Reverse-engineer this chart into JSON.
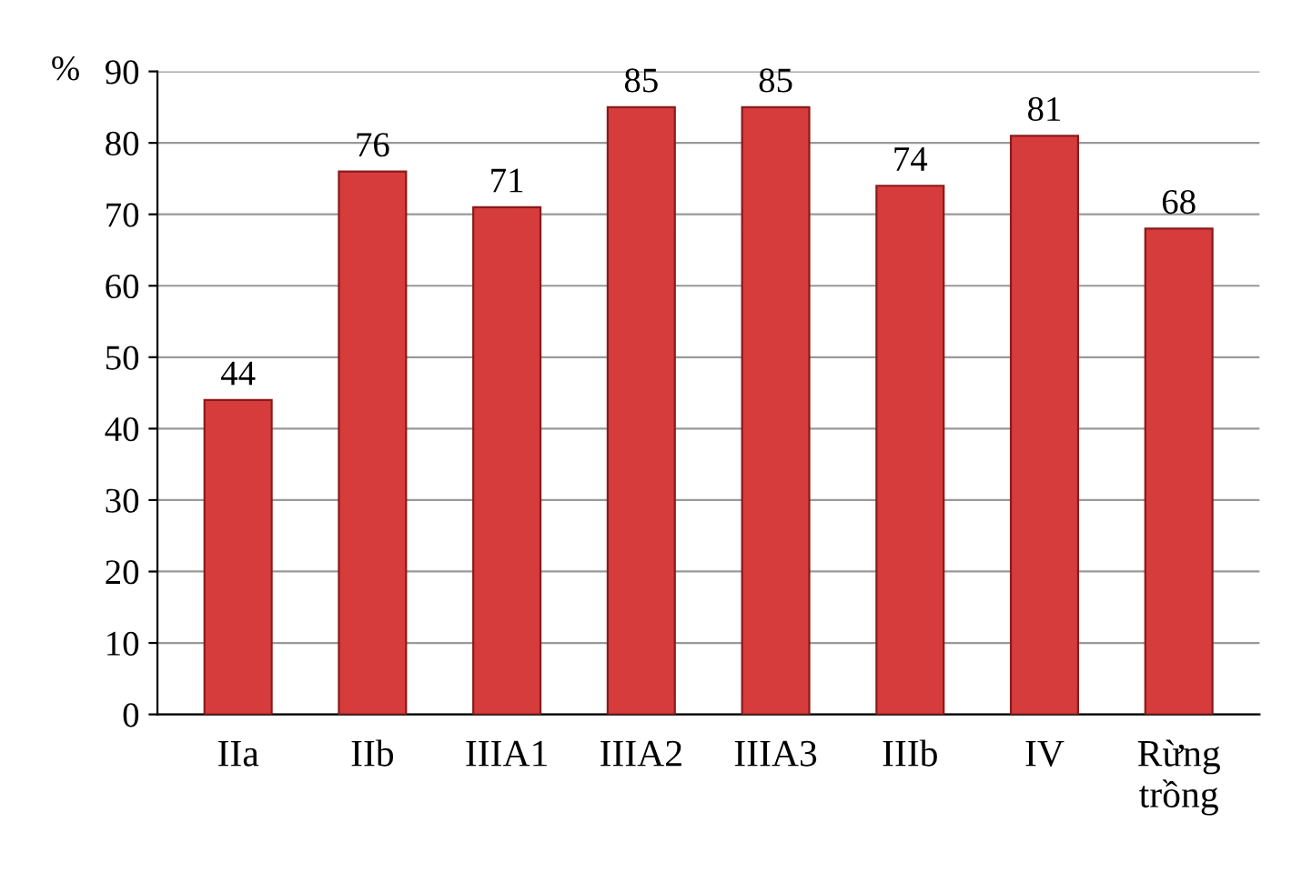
{
  "chart_data": {
    "type": "bar",
    "ylabel": "%",
    "categories": [
      "IIa",
      "IIb",
      "IIIA1",
      "IIIA2",
      "IIIA3",
      "IIIb",
      "IV",
      "Rừng\ntrồng"
    ],
    "values": [
      44,
      76,
      71,
      85,
      85,
      74,
      81,
      68
    ],
    "color": "#d63c3c",
    "ylim": [
      0,
      90
    ],
    "yticks": [
      0,
      10,
      20,
      30,
      40,
      50,
      60,
      70,
      80,
      90
    ],
    "grid": "y",
    "data_labels": true,
    "legend": false
  }
}
